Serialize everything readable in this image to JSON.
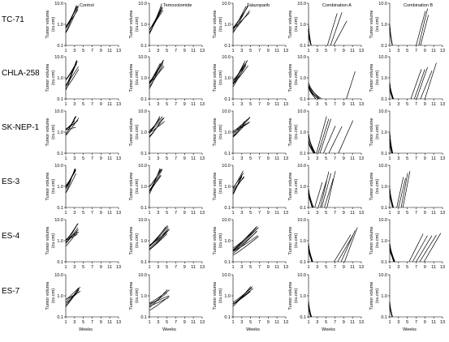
{
  "chart_data": {
    "type": "line",
    "columns": [
      "Control",
      "Temozolomide",
      "Talazoparib",
      "Combination A",
      "Combination B"
    ],
    "rows": [
      "TC-71",
      "CHLA-258",
      "SK-NEP-1",
      "ES-3",
      "ES-4",
      "ES-7"
    ],
    "xlabel": "Weeks",
    "ylabel": "Tumor volume",
    "ylabel_unit": "(cu.cm)",
    "x_ticks": [
      "1",
      "3",
      "5",
      "7",
      "9",
      "11",
      "13"
    ],
    "xlim": [
      1,
      13
    ],
    "y_scale": "log",
    "ylim": [
      0.1,
      10
    ],
    "y_ticks": [
      "10.0",
      "1.0",
      "0.1"
    ],
    "panels": [
      [
        {
          "n": 6,
          "start": [
            0.3,
            0.8
          ],
          "end": [
            3.3,
            4.0
          ],
          "y1": [
            3,
            9.5
          ],
          "regress": 0,
          "regrow_at": []
        },
        {
          "n": 6,
          "start": [
            0.25,
            0.6
          ],
          "end": [
            3.6,
            4.2
          ],
          "y1": [
            4,
            10
          ],
          "regress": 0,
          "regrow_at": []
        },
        {
          "n": 6,
          "start": [
            0.3,
            0.7
          ],
          "end": [
            3.8,
            5.2
          ],
          "y1": [
            3,
            9
          ],
          "regress": 0,
          "regrow_at": []
        },
        {
          "n": 6,
          "start": [
            0.3,
            1.0
          ],
          "end": [
            1.6,
            1.6
          ],
          "y1": [
            0.1,
            0.1
          ],
          "regress": 1,
          "regrow_at": [
            [
              5.3,
              7.5
            ],
            [
              6.0,
              8.6
            ],
            [
              6.7,
              9.7
            ]
          ]
        },
        {
          "n": 6,
          "start": [
            0.3,
            1.0
          ],
          "end": [
            1.6,
            1.6
          ],
          "y1": [
            0.1,
            0.1
          ],
          "regress": 1,
          "regrow_at": [
            [
              7.0,
              9.1
            ],
            [
              7.6,
              9.6
            ],
            [
              8.0,
              9.8
            ]
          ]
        }
      ],
      [
        {
          "n": 7,
          "start": [
            0.25,
            0.9
          ],
          "end": [
            3.1,
            4.0
          ],
          "y1": [
            2,
            8
          ],
          "regress": 0,
          "regrow_at": []
        },
        {
          "n": 7,
          "start": [
            0.3,
            0.7
          ],
          "end": [
            3.3,
            4.5
          ],
          "y1": [
            2,
            7
          ],
          "regress": 0,
          "regrow_at": []
        },
        {
          "n": 7,
          "start": [
            0.3,
            0.9
          ],
          "end": [
            3.6,
            4.8
          ],
          "y1": [
            2,
            7
          ],
          "regress": 0,
          "regrow_at": []
        },
        {
          "n": 7,
          "start": [
            0.3,
            0.7
          ],
          "end": [
            2.5,
            4.0
          ],
          "y1": [
            0.1,
            0.15
          ],
          "regress": 1,
          "regrow_at": [
            [
              9.6,
              11.6
            ]
          ]
        },
        {
          "n": 7,
          "start": [
            0.3,
            0.7
          ],
          "end": [
            1.6,
            2.0
          ],
          "y1": [
            0.1,
            0.1
          ],
          "regress": 1,
          "regrow_at": [
            [
              5.8,
              8.2
            ],
            [
              6.6,
              9.0
            ],
            [
              7.1,
              9.6
            ],
            [
              8.0,
              10.6
            ],
            [
              9.0,
              11.6
            ]
          ]
        }
      ],
      [
        {
          "n": 7,
          "start": [
            0.4,
            1.4
          ],
          "end": [
            3.0,
            4.0
          ],
          "y1": [
            1.5,
            6
          ],
          "regress": 0,
          "regrow_at": []
        },
        {
          "n": 7,
          "start": [
            0.4,
            1.2
          ],
          "end": [
            3.3,
            4.6
          ],
          "y1": [
            2,
            6
          ],
          "regress": 0,
          "regrow_at": []
        },
        {
          "n": 7,
          "start": [
            0.4,
            1.2
          ],
          "end": [
            3.6,
            5.1
          ],
          "y1": [
            2,
            6
          ],
          "regress": 0,
          "regrow_at": []
        },
        {
          "n": 7,
          "start": [
            0.3,
            1.0
          ],
          "end": [
            2.0,
            2.6
          ],
          "y1": [
            0.1,
            0.12
          ],
          "regress": 1,
          "regrow_at": [
            [
              2.8,
              5.1
            ],
            [
              3.2,
              5.6
            ],
            [
              3.6,
              6.1
            ],
            [
              4.4,
              7.1
            ],
            [
              5.6,
              8.6
            ],
            [
              7.8,
              11.1
            ]
          ]
        },
        {
          "n": 7,
          "start": [
            0.3,
            1.0
          ],
          "end": [
            1.4,
            1.8
          ],
          "y1": [
            0.1,
            0.1
          ],
          "regress": 1,
          "regrow_at": []
        }
      ],
      [
        {
          "n": 7,
          "start": [
            0.4,
            1.1
          ],
          "end": [
            3.0,
            3.4
          ],
          "y1": [
            2.5,
            7
          ],
          "regress": 0,
          "regrow_at": []
        },
        {
          "n": 7,
          "start": [
            0.4,
            1.0
          ],
          "end": [
            3.4,
            4.0
          ],
          "y1": [
            3,
            8
          ],
          "regress": 0,
          "regrow_at": []
        },
        {
          "n": 7,
          "start": [
            0.4,
            1.1
          ],
          "end": [
            2.9,
            3.6
          ],
          "y1": [
            2.5,
            7
          ],
          "regress": 0,
          "regrow_at": []
        },
        {
          "n": 7,
          "start": [
            0.3,
            0.8
          ],
          "end": [
            1.8,
            2.2
          ],
          "y1": [
            0.1,
            0.14
          ],
          "regress": 1,
          "regrow_at": [
            [
              2.4,
              4.1
            ],
            [
              3.2,
              5.1
            ],
            [
              3.7,
              5.6
            ],
            [
              4.0,
              6.1
            ],
            [
              4.6,
              6.6
            ],
            [
              5.2,
              7.1
            ]
          ]
        },
        {
          "n": 7,
          "start": [
            0.4,
            1.0
          ],
          "end": [
            1.6,
            1.9
          ],
          "y1": [
            0.1,
            0.1
          ],
          "regress": 1,
          "regrow_at": [
            [
              2.6,
              4.1
            ],
            [
              3.0,
              4.6
            ],
            [
              3.6,
              5.1
            ],
            [
              4.0,
              5.6
            ]
          ]
        }
      ],
      [
        {
          "n": 8,
          "start": [
            0.3,
            1.2
          ],
          "end": [
            3.6,
            4.0
          ],
          "y1": [
            2,
            7
          ],
          "regress": 0,
          "regrow_at": []
        },
        {
          "n": 8,
          "start": [
            0.3,
            0.6
          ],
          "end": [
            4.6,
            5.6
          ],
          "y1": [
            2,
            6
          ],
          "regress": 0,
          "regrow_at": []
        },
        {
          "n": 8,
          "start": [
            0.2,
            0.5
          ],
          "end": [
            6.4,
            7.1
          ],
          "y1": [
            1.5,
            5
          ],
          "regress": 0,
          "regrow_at": []
        },
        {
          "n": 8,
          "start": [
            0.3,
            0.8
          ],
          "end": [
            1.7,
            2.0
          ],
          "y1": [
            0.1,
            0.1
          ],
          "regress": 1,
          "regrow_at": [
            [
              6.8,
              10.6
            ],
            [
              7.6,
              11.1
            ],
            [
              8.4,
              11.6
            ],
            [
              9.2,
              12.1
            ]
          ]
        },
        {
          "n": 8,
          "start": [
            0.3,
            0.8
          ],
          "end": [
            1.8,
            2.2
          ],
          "y1": [
            0.1,
            0.1
          ],
          "regress": 1,
          "regrow_at": [
            [
              5.4,
              8.6
            ],
            [
              6.2,
              9.6
            ],
            [
              7.0,
              10.6
            ],
            [
              7.8,
              11.6
            ],
            [
              8.8,
              12.6
            ]
          ]
        }
      ],
      [
        {
          "n": 6,
          "start": [
            0.25,
            0.7
          ],
          "end": [
            3.6,
            4.6
          ],
          "y1": [
            1,
            3
          ],
          "regress": 0,
          "regrow_at": []
        },
        {
          "n": 6,
          "start": [
            0.2,
            0.45
          ],
          "end": [
            4.6,
            5.6
          ],
          "y1": [
            0.8,
            2
          ],
          "regress": 0,
          "regrow_at": []
        },
        {
          "n": 6,
          "start": [
            0.2,
            0.5
          ],
          "end": [
            4.6,
            5.6
          ],
          "y1": [
            1,
            3
          ],
          "regress": 0,
          "regrow_at": []
        },
        {
          "n": 6,
          "start": [
            0.3,
            0.6
          ],
          "end": [
            1.4,
            1.7
          ],
          "y1": [
            0.1,
            0.1
          ],
          "regress": 1,
          "regrow_at": []
        },
        {
          "n": 6,
          "start": [
            0.3,
            0.6
          ],
          "end": [
            1.4,
            1.7
          ],
          "y1": [
            0.1,
            0.1
          ],
          "regress": 1,
          "regrow_at": []
        }
      ]
    ]
  }
}
